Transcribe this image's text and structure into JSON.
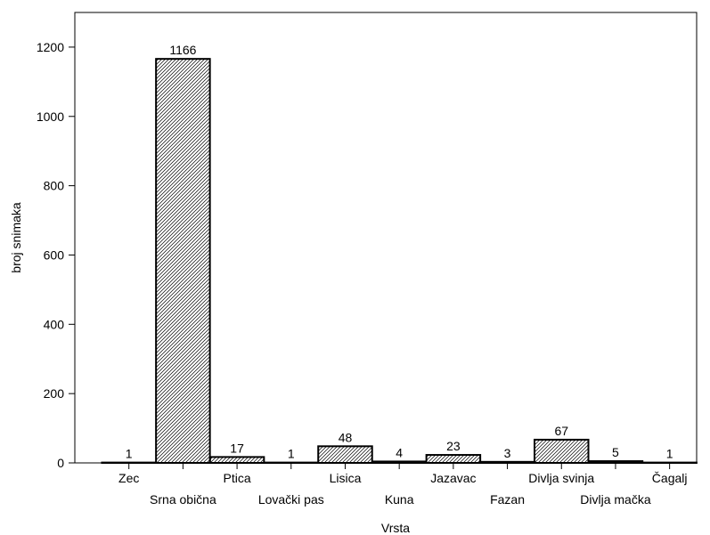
{
  "chart_data": {
    "type": "bar",
    "title": "",
    "xlabel": "Vrsta",
    "ylabel": "broj snimaka",
    "ylim": [
      0,
      1300
    ],
    "yticks": [
      0,
      200,
      400,
      600,
      800,
      1000,
      1200
    ],
    "categories": [
      "Zec",
      "Srna obična",
      "Ptica",
      "Lovački pas",
      "Lisica",
      "Kuna",
      "Jazavac",
      "Fazan",
      "Divlja svinja",
      "Divlja mačka",
      "Čagalj"
    ],
    "values": [
      1,
      1166,
      17,
      1,
      48,
      4,
      23,
      3,
      67,
      5,
      1
    ],
    "data_labels": [
      "1",
      "1166",
      "17",
      "1",
      "48",
      "4",
      "23",
      "3",
      "67",
      "5",
      "1"
    ],
    "bar_fill": "hatched",
    "grid": false,
    "colors": {
      "bar_stroke": "#000000",
      "hatch": "#000000",
      "background": "#ffffff"
    }
  }
}
